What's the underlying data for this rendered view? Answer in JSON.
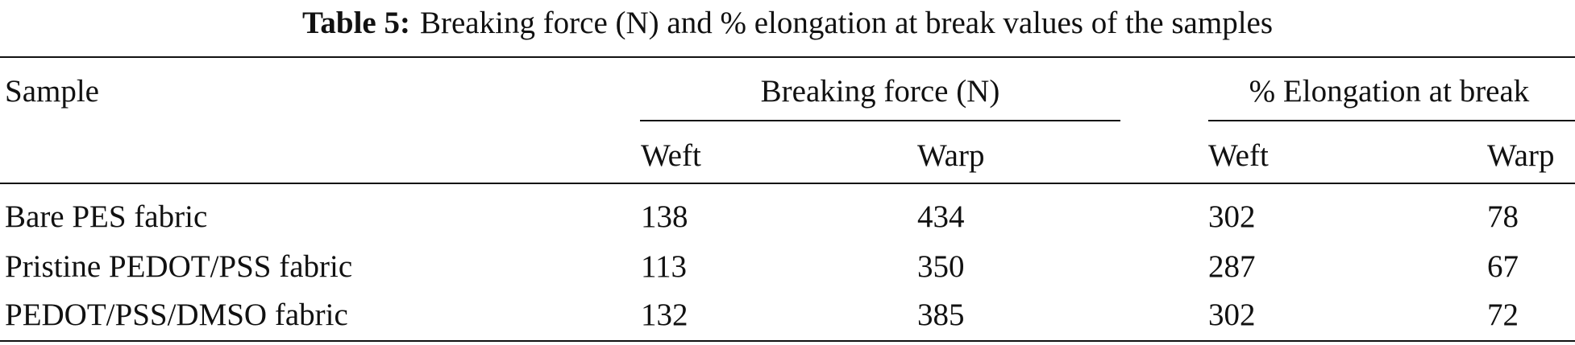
{
  "caption": {
    "label": "Table 5:",
    "text": "Breaking force (N) and % elongation at break values of the samples"
  },
  "table": {
    "header": {
      "sample": "Sample",
      "groups": [
        "Breaking force (N)",
        "% Elongation at break"
      ],
      "subheaders": [
        "Weft",
        "Warp",
        "Weft",
        "Warp"
      ]
    },
    "rows": [
      [
        "Bare PES fabric",
        "138",
        "434",
        "302",
        "78"
      ],
      [
        "Pristine PEDOT/PSS fabric",
        "113",
        "350",
        "287",
        "67"
      ],
      [
        "PEDOT/PSS/DMSO fabric",
        "132",
        "385",
        "302",
        "72"
      ]
    ]
  }
}
